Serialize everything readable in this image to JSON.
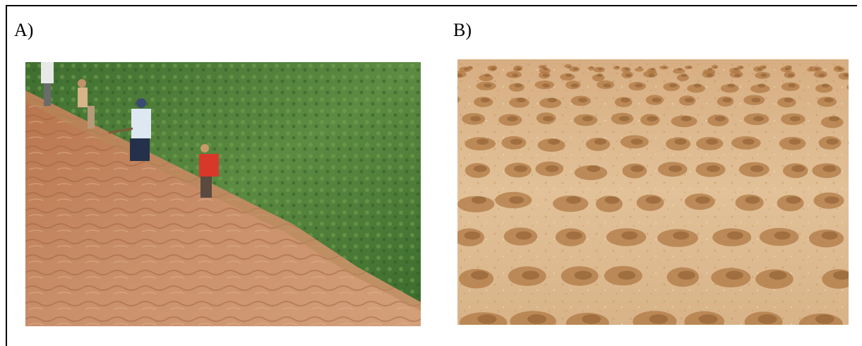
{
  "panels": [
    {
      "label": "A)",
      "image": "hillside-slope-workers-photo"
    },
    {
      "label": "B)",
      "image": "planted-soil-furrows-photo"
    }
  ],
  "colors": {
    "soil": "#c9906a",
    "soil_dark": "#a86a45",
    "grass": "#4f7f3a",
    "grass_light": "#76a24e",
    "sand": "#d9b48c",
    "sand_light": "#e6c9a3",
    "tuft": "#b08048"
  }
}
